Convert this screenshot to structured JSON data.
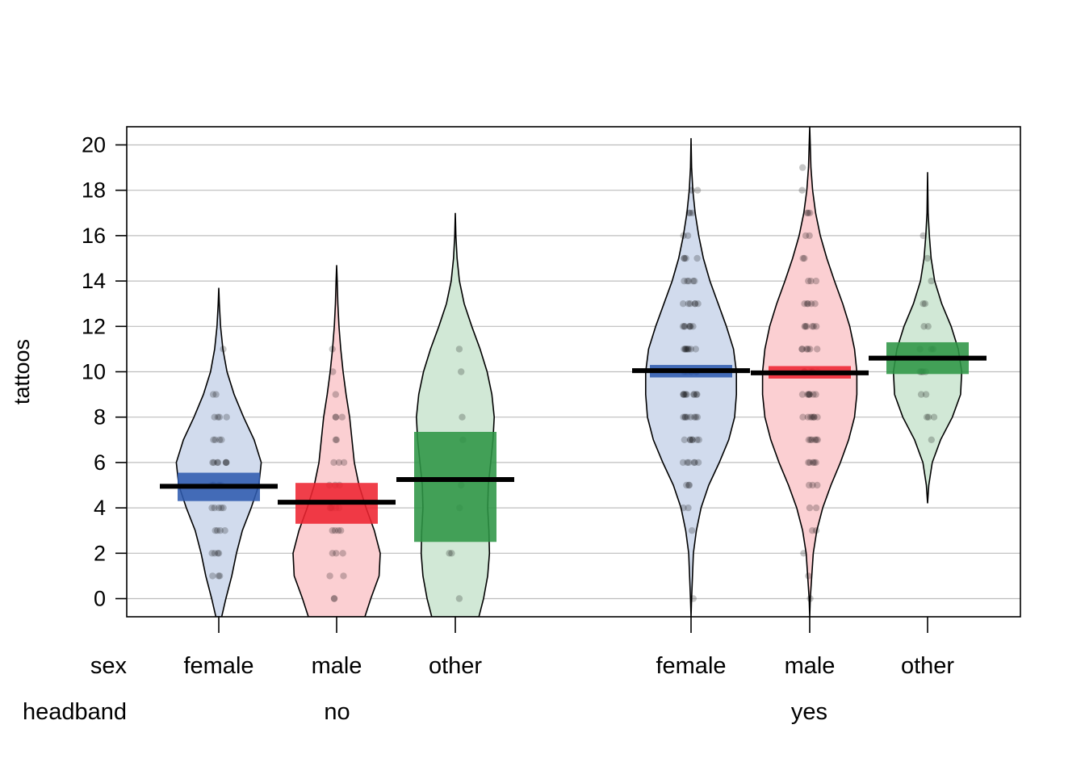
{
  "chart_data": {
    "type": "pirate",
    "title": "",
    "xlabel": "",
    "ylabel": "tattoos",
    "ylim": [
      -0.8,
      20.8
    ],
    "yticks": [
      0,
      2,
      4,
      6,
      8,
      10,
      12,
      14,
      16,
      18,
      20
    ],
    "grid": true,
    "factor_labels": {
      "inner": "sex",
      "outer": "headband"
    },
    "groups": [
      {
        "headband": "no",
        "series": [
          {
            "sex": "female",
            "color": "#2F5BAF",
            "mean": 4.95,
            "hdi": [
              4.3,
              5.55
            ],
            "density": [
              [
                -0.8,
                0.05
              ],
              [
                0,
                0.12
              ],
              [
                1,
                0.22
              ],
              [
                2,
                0.3
              ],
              [
                3,
                0.4
              ],
              [
                4,
                0.55
              ],
              [
                5,
                0.68
              ],
              [
                6,
                0.72
              ],
              [
                7,
                0.6
              ],
              [
                8,
                0.42
              ],
              [
                9,
                0.26
              ],
              [
                10,
                0.14
              ],
              [
                11,
                0.07
              ],
              [
                12,
                0.03
              ],
              [
                13,
                0.01
              ],
              [
                13.7,
                0
              ]
            ],
            "points": [
              1,
              1,
              1,
              2,
              2,
              2,
              2,
              3,
              3,
              3,
              3,
              4,
              4,
              4,
              4,
              4,
              5,
              5,
              5,
              5,
              5,
              5,
              6,
              6,
              6,
              6,
              6,
              6,
              6,
              7,
              7,
              7,
              7,
              8,
              8,
              8,
              8,
              9,
              9,
              11
            ]
          },
          {
            "sex": "male",
            "color": "#EE2431",
            "mean": 4.25,
            "hdi": [
              3.3,
              5.1
            ],
            "density": [
              [
                -0.8,
                0.48
              ],
              [
                0,
                0.58
              ],
              [
                1,
                0.72
              ],
              [
                2,
                0.74
              ],
              [
                3,
                0.64
              ],
              [
                4,
                0.5
              ],
              [
                5,
                0.38
              ],
              [
                6,
                0.3
              ],
              [
                7,
                0.26
              ],
              [
                8,
                0.22
              ],
              [
                9,
                0.16
              ],
              [
                10,
                0.11
              ],
              [
                11,
                0.07
              ],
              [
                12,
                0.04
              ],
              [
                13,
                0.02
              ],
              [
                14,
                0.01
              ],
              [
                14.7,
                0
              ]
            ],
            "points": [
              0,
              0,
              1,
              1,
              2,
              2,
              2,
              3,
              3,
              3,
              3,
              4,
              4,
              4,
              4,
              4,
              5,
              5,
              5,
              6,
              6,
              6,
              7,
              7,
              8,
              8,
              8,
              9,
              10,
              11
            ]
          },
          {
            "sex": "other",
            "color": "#2E9545",
            "mean": 5.25,
            "hdi": [
              2.5,
              7.35
            ],
            "density": [
              [
                -0.8,
                0.4
              ],
              [
                0,
                0.48
              ],
              [
                1,
                0.55
              ],
              [
                2,
                0.58
              ],
              [
                3,
                0.57
              ],
              [
                4,
                0.55
              ],
              [
                5,
                0.56
              ],
              [
                6,
                0.6
              ],
              [
                7,
                0.64
              ],
              [
                8,
                0.66
              ],
              [
                9,
                0.62
              ],
              [
                10,
                0.54
              ],
              [
                11,
                0.42
              ],
              [
                12,
                0.28
              ],
              [
                13,
                0.15
              ],
              [
                14,
                0.07
              ],
              [
                15,
                0.03
              ],
              [
                16,
                0.01
              ],
              [
                17,
                0
              ]
            ],
            "points": [
              0,
              2,
              2,
              4,
              5,
              7,
              8,
              10,
              11
            ]
          }
        ]
      },
      {
        "headband": "yes",
        "series": [
          {
            "sex": "female",
            "color": "#2F5BAF",
            "mean": 10.05,
            "hdi": [
              9.75,
              10.3
            ],
            "density": [
              [
                -0.8,
                0
              ],
              [
                0,
                0.01
              ],
              [
                2,
                0.04
              ],
              [
                3,
                0.09
              ],
              [
                4,
                0.17
              ],
              [
                5,
                0.3
              ],
              [
                6,
                0.48
              ],
              [
                7,
                0.64
              ],
              [
                8,
                0.74
              ],
              [
                9,
                0.77
              ],
              [
                10,
                0.77
              ],
              [
                11,
                0.72
              ],
              [
                12,
                0.6
              ],
              [
                13,
                0.46
              ],
              [
                14,
                0.32
              ],
              [
                15,
                0.21
              ],
              [
                16,
                0.13
              ],
              [
                17,
                0.07
              ],
              [
                18,
                0.03
              ],
              [
                19,
                0.01
              ],
              [
                20.3,
                0
              ]
            ],
            "points": [
              0,
              3,
              4,
              4,
              5,
              5,
              5,
              6,
              6,
              6,
              6,
              6,
              6,
              7,
              7,
              7,
              7,
              7,
              7,
              7,
              8,
              8,
              8,
              8,
              8,
              8,
              8,
              8,
              9,
              9,
              9,
              9,
              9,
              9,
              9,
              9,
              9,
              10,
              10,
              10,
              10,
              10,
              10,
              10,
              11,
              11,
              11,
              11,
              11,
              11,
              11,
              11,
              12,
              12,
              12,
              12,
              12,
              12,
              12,
              13,
              13,
              13,
              13,
              13,
              13,
              14,
              14,
              14,
              14,
              14,
              15,
              15,
              15,
              15,
              16,
              16,
              17,
              17,
              17,
              18,
              18
            ]
          },
          {
            "sex": "male",
            "color": "#EE2431",
            "mean": 9.95,
            "hdi": [
              9.7,
              10.25
            ],
            "density": [
              [
                -0.8,
                0
              ],
              [
                0,
                0.01
              ],
              [
                2,
                0.06
              ],
              [
                3,
                0.12
              ],
              [
                4,
                0.22
              ],
              [
                5,
                0.36
              ],
              [
                6,
                0.52
              ],
              [
                7,
                0.66
              ],
              [
                8,
                0.76
              ],
              [
                9,
                0.8
              ],
              [
                10,
                0.8
              ],
              [
                11,
                0.76
              ],
              [
                12,
                0.68
              ],
              [
                13,
                0.56
              ],
              [
                14,
                0.42
              ],
              [
                15,
                0.29
              ],
              [
                16,
                0.18
              ],
              [
                17,
                0.1
              ],
              [
                18,
                0.05
              ],
              [
                19,
                0.02
              ],
              [
                20.8,
                0
              ]
            ],
            "points": [
              0,
              1,
              2,
              3,
              3,
              4,
              4,
              5,
              5,
              5,
              6,
              6,
              6,
              6,
              6,
              7,
              7,
              7,
              7,
              7,
              7,
              8,
              8,
              8,
              8,
              8,
              8,
              8,
              9,
              9,
              9,
              9,
              9,
              9,
              9,
              10,
              10,
              10,
              10,
              10,
              10,
              10,
              11,
              11,
              11,
              11,
              11,
              11,
              12,
              12,
              12,
              12,
              12,
              12,
              13,
              13,
              13,
              13,
              13,
              14,
              14,
              14,
              15,
              15,
              16,
              16,
              17,
              17,
              17,
              18,
              19
            ]
          },
          {
            "sex": "other",
            "color": "#2E9545",
            "mean": 10.6,
            "hdi": [
              9.9,
              11.3
            ],
            "density": [
              [
                4.2,
                0
              ],
              [
                5,
                0.02
              ],
              [
                6,
                0.08
              ],
              [
                7,
                0.22
              ],
              [
                8,
                0.42
              ],
              [
                9,
                0.56
              ],
              [
                10,
                0.58
              ],
              [
                11,
                0.52
              ],
              [
                12,
                0.4
              ],
              [
                13,
                0.24
              ],
              [
                14,
                0.12
              ],
              [
                15,
                0.06
              ],
              [
                16,
                0.03
              ],
              [
                17,
                0.01
              ],
              [
                18.8,
                0
              ]
            ],
            "points": [
              7,
              8,
              8,
              8,
              9,
              9,
              10,
              10,
              10,
              10,
              11,
              11,
              11,
              12,
              12,
              13,
              13,
              14,
              15,
              16
            ]
          }
        ]
      }
    ]
  }
}
